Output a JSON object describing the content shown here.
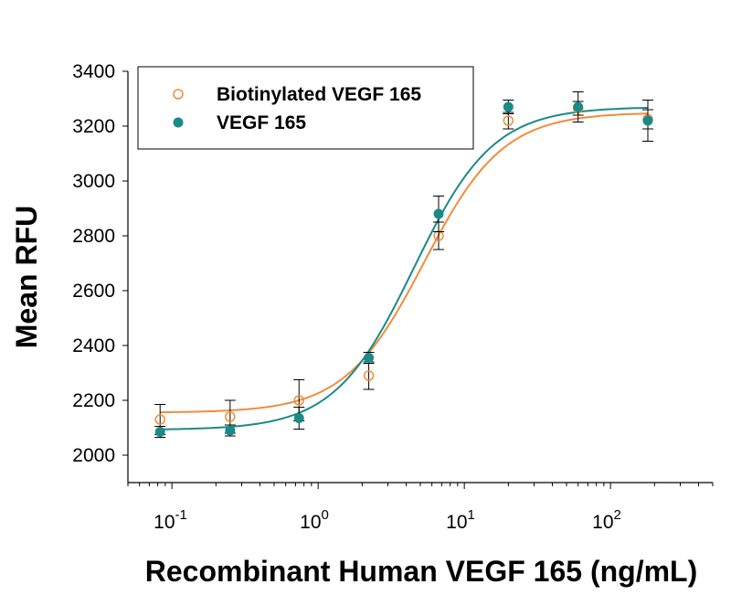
{
  "chart_data": {
    "type": "scatter",
    "title": "",
    "xlabel": "Recombinant Human VEGF 165 (ng/mL)",
    "ylabel": "Mean RFU",
    "x_scale": "log",
    "xlim": [
      0.05,
      500
    ],
    "ylim": [
      1900,
      3400
    ],
    "x_ticks": [
      {
        "base": "10",
        "exp": "-1"
      },
      {
        "base": "10",
        "exp": "0"
      },
      {
        "base": "10",
        "exp": "1"
      },
      {
        "base": "10",
        "exp": "2"
      }
    ],
    "y_ticks": [
      "2000",
      "2200",
      "2400",
      "2600",
      "2800",
      "3000",
      "3200",
      "3400"
    ],
    "grid": false,
    "legend_position": "top-left",
    "series": [
      {
        "name": "Biotinylated VEGF 165",
        "color": "#F28C3C",
        "marker": "open-circle",
        "x": [
          0.083,
          0.25,
          0.74,
          2.22,
          6.67,
          20,
          60,
          180
        ],
        "y": [
          2130,
          2140,
          2200,
          2290,
          2800,
          3220,
          3265,
          3225
        ],
        "error": [
          55,
          60,
          75,
          50,
          50,
          30,
          25,
          35
        ],
        "fit": {
          "bottom": 2155,
          "top": 3250,
          "ec50": 5.3,
          "hill": 1.6
        }
      },
      {
        "name": "VEGF 165",
        "color": "#1B8A86",
        "marker": "filled-circle",
        "x": [
          0.083,
          0.25,
          0.74,
          2.22,
          6.67,
          20,
          60,
          180
        ],
        "y": [
          2085,
          2090,
          2135,
          2355,
          2880,
          3270,
          3270,
          3220
        ],
        "error": [
          20,
          20,
          40,
          20,
          65,
          25,
          55,
          75
        ],
        "fit": {
          "bottom": 2092,
          "top": 3270,
          "ec50": 4.5,
          "hill": 1.6
        }
      }
    ]
  }
}
